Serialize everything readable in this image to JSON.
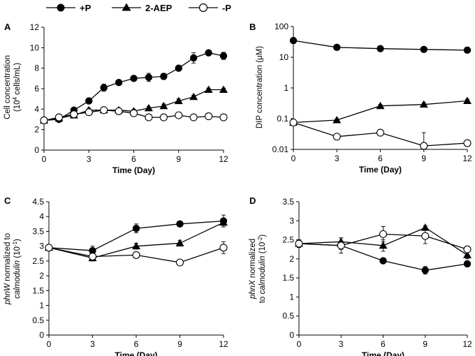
{
  "legend": {
    "entries": [
      {
        "label": "+P",
        "marker": "filled-circle"
      },
      {
        "label": "2-AEP",
        "marker": "filled-triangle"
      },
      {
        "label": "-P",
        "marker": "open-circle"
      }
    ]
  },
  "chart_data": [
    {
      "panel": "A",
      "type": "line",
      "ylabel": "Cell concentration",
      "ylabel_line2_prefix": "(10",
      "ylabel_line2_sup": "4",
      "ylabel_line2_suffix": " cells/mL)",
      "xlabel": "Time (Day)",
      "yscale": "linear",
      "xlim": [
        0,
        12
      ],
      "ylim": [
        0,
        12
      ],
      "xticks": [
        0,
        3,
        6,
        9,
        12
      ],
      "yticks": [
        0,
        2,
        4,
        6,
        8,
        10,
        12
      ],
      "ytick_labels": [
        "0",
        "2",
        "4",
        "6",
        "8",
        "10",
        "12"
      ],
      "series": [
        {
          "name": "+P",
          "marker": "filled-circle",
          "x": [
            0,
            1,
            2,
            3,
            4,
            5,
            6,
            7,
            8,
            9,
            10,
            11,
            12
          ],
          "y": [
            2.9,
            3.0,
            3.9,
            4.8,
            6.1,
            6.6,
            7.0,
            7.1,
            7.2,
            8.0,
            9.0,
            9.5,
            9.2
          ],
          "err": [
            0.15,
            0.1,
            0.15,
            0.15,
            0.35,
            0.15,
            0.2,
            0.4,
            0.3,
            0.2,
            0.5,
            0.2,
            0.35
          ]
        },
        {
          "name": "2-AEP",
          "marker": "filled-triangle",
          "x": [
            0,
            1,
            2,
            3,
            4,
            5,
            6,
            7,
            8,
            9,
            10,
            11,
            12
          ],
          "y": [
            2.9,
            3.1,
            3.4,
            3.9,
            3.9,
            3.9,
            3.8,
            4.1,
            4.3,
            4.8,
            5.2,
            5.9,
            5.9
          ],
          "err": [
            0.1,
            0.1,
            0.2,
            0.2,
            0.1,
            0.1,
            0.2,
            0.15,
            0.2,
            0.2,
            0.15,
            0.15,
            0.15
          ]
        },
        {
          "name": "-P",
          "marker": "open-circle",
          "x": [
            0,
            1,
            2,
            3,
            4,
            5,
            6,
            7,
            8,
            9,
            10,
            11,
            12
          ],
          "y": [
            2.9,
            3.2,
            3.5,
            3.7,
            3.9,
            3.8,
            3.6,
            3.2,
            3.2,
            3.4,
            3.2,
            3.3,
            3.2
          ],
          "err": [
            0.1,
            0.15,
            0.1,
            0.2,
            0.1,
            0.1,
            0.15,
            0.2,
            0.2,
            0.15,
            0.1,
            0.1,
            0.15
          ]
        }
      ]
    },
    {
      "panel": "B",
      "type": "line",
      "ylabel": "DIP concentration (μM)",
      "xlabel": "Time (Day)",
      "yscale": "log",
      "xlim": [
        0,
        12
      ],
      "ylim": [
        0.01,
        100
      ],
      "xticks": [
        0,
        3,
        6,
        9,
        12
      ],
      "yticks": [
        0.01,
        0.1,
        1,
        10,
        100
      ],
      "ytick_labels": [
        "0.01",
        "0.1",
        "1",
        "10",
        "100"
      ],
      "series": [
        {
          "name": "+P",
          "marker": "filled-circle",
          "x": [
            0,
            3,
            6,
            9,
            12
          ],
          "y": [
            35,
            21,
            19,
            18,
            17
          ],
          "err": [
            3,
            1.5,
            1.5,
            1.5,
            1.5
          ]
        },
        {
          "name": "2-AEP",
          "marker": "filled-triangle",
          "x": [
            0,
            3,
            6,
            9,
            12
          ],
          "y": [
            0.075,
            0.09,
            0.26,
            0.29,
            0.38
          ],
          "err": [
            0.005,
            0.01,
            0.03,
            0.04,
            0.05
          ]
        },
        {
          "name": "-P",
          "marker": "open-circle",
          "x": [
            0,
            3,
            6,
            9,
            12
          ],
          "y": [
            0.075,
            0.026,
            0.035,
            0.013,
            0.016
          ],
          "err": [
            0.01,
            0.003,
            0.004,
            0.022,
            0.003
          ]
        }
      ]
    },
    {
      "panel": "C",
      "type": "line",
      "ylabel_gene": "phnW",
      "ylabel_line1_suffix": " normalized to",
      "ylabel_line2_gene": "calmodulin",
      "ylabel_line2_prefix": " (10",
      "ylabel_line2_sup": "-1",
      "ylabel_line2_suffix": ")",
      "xlabel": "Time (Day)",
      "yscale": "linear",
      "xlim": [
        0,
        12
      ],
      "ylim": [
        0,
        4.5
      ],
      "xticks": [
        0,
        3,
        6,
        9,
        12
      ],
      "yticks": [
        0,
        0.5,
        1,
        1.5,
        2,
        2.5,
        3,
        3.5,
        4,
        4.5
      ],
      "ytick_labels": [
        "0",
        "0.5",
        "1",
        "1.5",
        "2",
        "2.5",
        "3",
        "3.5",
        "4",
        "4.5"
      ],
      "series": [
        {
          "name": "+P",
          "marker": "filled-circle",
          "x": [
            0,
            3,
            6,
            9,
            12
          ],
          "y": [
            2.95,
            2.85,
            3.6,
            3.75,
            3.85
          ],
          "err": [
            0.1,
            0.15,
            0.15,
            0.05,
            0.2
          ]
        },
        {
          "name": "2-AEP",
          "marker": "filled-triangle",
          "x": [
            0,
            3,
            6,
            9,
            12
          ],
          "y": [
            2.95,
            2.6,
            3.0,
            3.1,
            3.8
          ],
          "err": [
            0.1,
            0.1,
            0.1,
            0.1,
            0.1
          ]
        },
        {
          "name": "-P",
          "marker": "open-circle",
          "x": [
            0,
            3,
            6,
            9,
            12
          ],
          "y": [
            2.95,
            2.65,
            2.7,
            2.45,
            2.95
          ],
          "err": [
            0.1,
            0.05,
            0.05,
            0.05,
            0.2
          ]
        }
      ]
    },
    {
      "panel": "D",
      "type": "line",
      "ylabel_gene": "phnX",
      "ylabel_line1_suffix": " normalized",
      "ylabel_line2_plain": "to ",
      "ylabel_line2_gene": "calmodulin",
      "ylabel_line2_prefix": " (10",
      "ylabel_line2_sup": "-2",
      "ylabel_line2_suffix": ")",
      "xlabel": "Time (Day)",
      "yscale": "linear",
      "xlim": [
        0,
        12
      ],
      "ylim": [
        0,
        3.5
      ],
      "xticks": [
        0,
        3,
        6,
        9,
        12
      ],
      "yticks": [
        0,
        0.5,
        1,
        1.5,
        2,
        2.5,
        3,
        3.5
      ],
      "ytick_labels": [
        "0",
        "0.5",
        "1",
        "1.5",
        "2",
        "2.5",
        "3",
        "3.5"
      ],
      "series": [
        {
          "name": "+P",
          "marker": "filled-circle",
          "x": [
            0,
            3,
            6,
            9,
            12
          ],
          "y": [
            2.4,
            2.35,
            1.95,
            1.7,
            1.87
          ],
          "err": [
            0.1,
            0.1,
            0.05,
            0.1,
            0.05
          ]
        },
        {
          "name": "2-AEP",
          "marker": "filled-triangle",
          "x": [
            0,
            3,
            6,
            9,
            12
          ],
          "y": [
            2.4,
            2.45,
            2.35,
            2.82,
            2.1
          ],
          "err": [
            0.1,
            0.1,
            0.15,
            0.05,
            0.1
          ]
        },
        {
          "name": "-P",
          "marker": "open-circle",
          "x": [
            0,
            3,
            6,
            9,
            12
          ],
          "y": [
            2.4,
            2.35,
            2.65,
            2.6,
            2.25
          ],
          "err": [
            0.1,
            0.2,
            0.2,
            0.2,
            0.05
          ]
        }
      ]
    }
  ]
}
